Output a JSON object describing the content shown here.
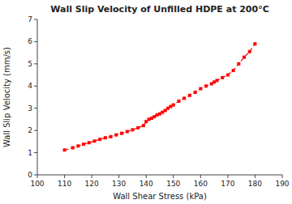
{
  "chart_data": {
    "type": "line",
    "title": "Wall Slip Velocity of Unfilled HDPE at 200°C",
    "x_label": "Wall Shear Stress  (kPa)",
    "y_label": "Wall Slip Velocity  (mm/s)",
    "x": [
      110,
      113,
      115,
      117,
      119,
      121,
      123,
      125,
      127,
      129,
      131,
      133,
      135,
      137,
      139,
      140,
      141,
      142,
      143,
      144,
      145,
      146,
      147,
      148,
      149,
      150,
      152,
      154,
      156,
      158,
      160,
      162,
      164,
      165,
      166,
      168,
      170,
      172,
      174,
      176,
      178,
      180
    ],
    "values": [
      1.12,
      1.22,
      1.3,
      1.38,
      1.45,
      1.52,
      1.6,
      1.67,
      1.72,
      1.8,
      1.87,
      1.95,
      2.03,
      2.12,
      2.22,
      2.4,
      2.5,
      2.55,
      2.62,
      2.7,
      2.75,
      2.82,
      2.9,
      3.0,
      3.08,
      3.15,
      3.32,
      3.45,
      3.58,
      3.72,
      3.88,
      4.0,
      4.1,
      4.18,
      4.25,
      4.38,
      4.5,
      4.7,
      5.0,
      5.3,
      5.55,
      5.9
    ],
    "color": "#ff0000",
    "marker": "square",
    "line_style": "dashed",
    "xlim": [
      100,
      190
    ],
    "ylim": [
      0,
      7
    ],
    "xticks": [
      100,
      110,
      120,
      130,
      140,
      150,
      160,
      170,
      180,
      190
    ],
    "yticks": [
      0,
      1,
      2,
      3,
      4,
      5,
      6,
      7
    ],
    "grid": false
  }
}
